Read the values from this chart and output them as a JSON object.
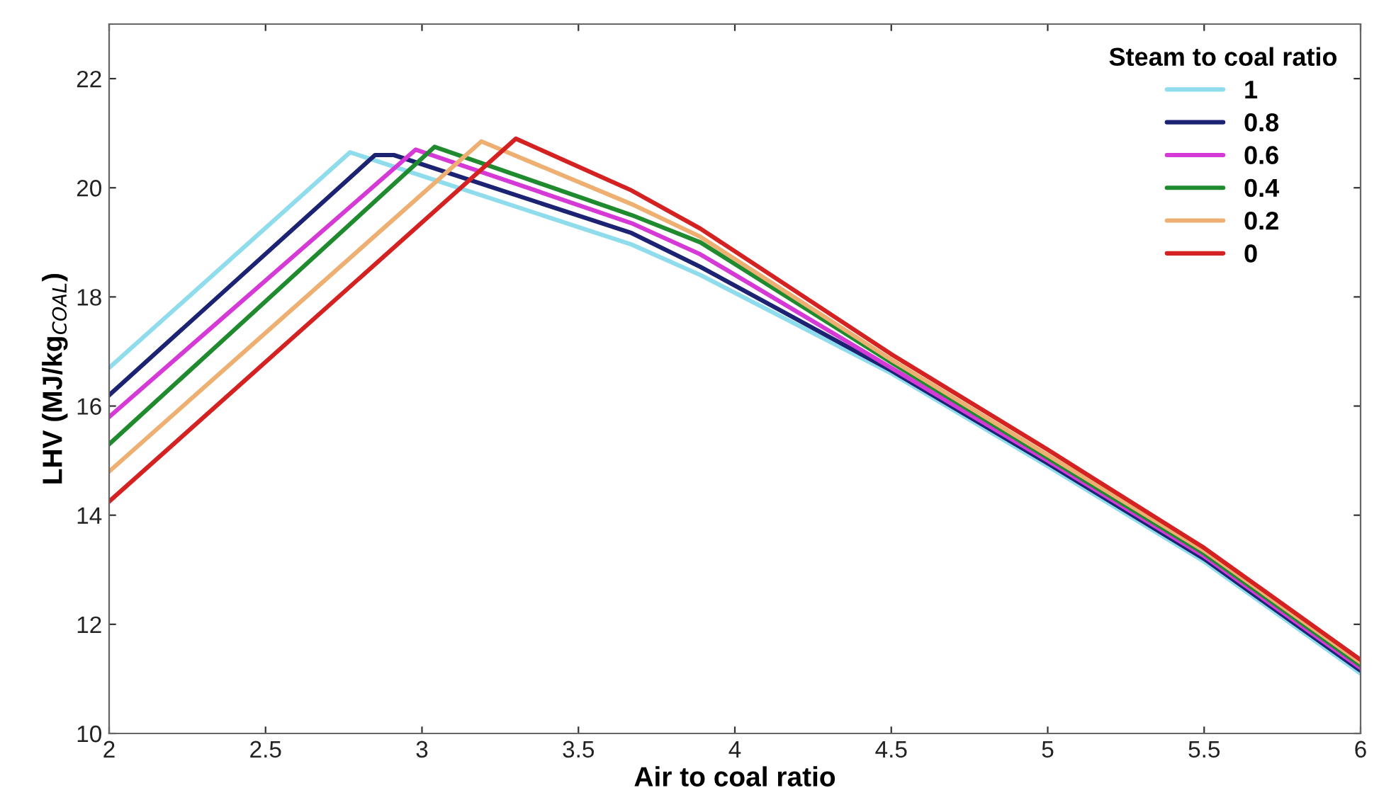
{
  "chart_data": {
    "type": "line",
    "xlabel": "Air to coal ratio",
    "ylabel": "LHV (MJ/kg$_{COAL}$)",
    "legend_title": "Steam to coal ratio",
    "xlim": [
      2,
      6
    ],
    "ylim": [
      10,
      23
    ],
    "xticks": [
      2,
      2.5,
      3,
      3.5,
      4,
      4.5,
      5,
      5.5,
      6
    ],
    "yticks": [
      10,
      12,
      14,
      16,
      18,
      20,
      22
    ],
    "grid": false,
    "legend": "top right",
    "marker": "none",
    "line_style": "solid",
    "series": [
      {
        "name": "1",
        "color": "#8fdcec",
        "x": [
          2,
          2.77,
          3.67,
          3.89,
          4.5,
          5,
          5.5,
          6
        ],
        "values": [
          16.7,
          20.65,
          18.96,
          18.4,
          16.6,
          14.9,
          13.15,
          11.1
        ]
      },
      {
        "name": "0.8",
        "color": "#1c2372",
        "x": [
          2,
          2.85,
          2.91,
          3.67,
          3.89,
          4.5,
          5,
          5.5,
          6
        ],
        "values": [
          16.2,
          20.6,
          20.6,
          19.17,
          18.55,
          16.65,
          14.95,
          13.2,
          11.15
        ]
      },
      {
        "name": "0.6",
        "color": "#d63ad6",
        "x": [
          2,
          2.98,
          3.67,
          3.89,
          4.5,
          5,
          5.5,
          6
        ],
        "values": [
          15.8,
          20.7,
          19.35,
          18.78,
          16.7,
          15.0,
          13.25,
          11.2
        ]
      },
      {
        "name": "0.4",
        "color": "#1f8a2e",
        "x": [
          2,
          3.04,
          3.67,
          3.89,
          4.5,
          5,
          5.5,
          6
        ],
        "values": [
          15.3,
          20.75,
          19.5,
          19.0,
          16.8,
          15.05,
          13.3,
          11.25
        ]
      },
      {
        "name": "0.2",
        "color": "#eeb072",
        "x": [
          2,
          3.19,
          3.67,
          3.89,
          4.5,
          5,
          5.5,
          6
        ],
        "values": [
          14.8,
          20.85,
          19.7,
          19.1,
          16.85,
          15.1,
          13.35,
          11.3
        ]
      },
      {
        "name": "0",
        "color": "#d42222",
        "x": [
          2,
          3.3,
          3.67,
          3.89,
          4.5,
          5,
          5.5,
          6
        ],
        "values": [
          14.25,
          20.9,
          19.95,
          19.25,
          16.95,
          15.2,
          13.4,
          11.35
        ]
      }
    ]
  }
}
